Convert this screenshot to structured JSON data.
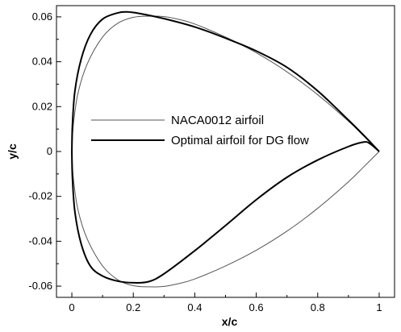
{
  "chart_data": {
    "type": "line",
    "title": "",
    "xlabel": "x/c",
    "ylabel": "y/c",
    "xlim": [
      -0.05,
      1.05
    ],
    "ylim": [
      -0.065,
      0.065
    ],
    "xticks": [
      0,
      0.2,
      0.4,
      0.6,
      0.8,
      1
    ],
    "xtick_labels": [
      "0",
      "0.2",
      "0.4",
      "0.6",
      "0.8",
      "1"
    ],
    "yticks": [
      -0.06,
      -0.04,
      -0.02,
      0,
      0.02,
      0.04,
      0.06
    ],
    "ytick_labels": [
      "-0.06",
      "-0.04",
      "-0.02",
      "0",
      "0.02",
      "0.04",
      "0.06"
    ],
    "grid": false,
    "legend_position": "center-left",
    "series": [
      {
        "name": "NACA0012 airfoil",
        "color": "#555555",
        "style": "thin",
        "upper": [
          [
            0,
            0
          ],
          [
            0.005,
            0.012
          ],
          [
            0.02,
            0.026
          ],
          [
            0.05,
            0.039
          ],
          [
            0.1,
            0.051
          ],
          [
            0.15,
            0.0572
          ],
          [
            0.2,
            0.0598
          ],
          [
            0.25,
            0.0603
          ],
          [
            0.3,
            0.0601
          ],
          [
            0.35,
            0.0588
          ],
          [
            0.4,
            0.0568
          ],
          [
            0.5,
            0.051
          ],
          [
            0.6,
            0.044
          ],
          [
            0.7,
            0.0355
          ],
          [
            0.8,
            0.0253
          ],
          [
            0.9,
            0.0135
          ],
          [
            0.95,
            0.0068
          ],
          [
            1,
            0
          ]
        ],
        "lower": [
          [
            0,
            0
          ],
          [
            0.005,
            -0.012
          ],
          [
            0.02,
            -0.026
          ],
          [
            0.05,
            -0.039
          ],
          [
            0.1,
            -0.051
          ],
          [
            0.15,
            -0.0572
          ],
          [
            0.2,
            -0.0598
          ],
          [
            0.25,
            -0.0603
          ],
          [
            0.3,
            -0.0601
          ],
          [
            0.35,
            -0.0588
          ],
          [
            0.4,
            -0.0568
          ],
          [
            0.5,
            -0.051
          ],
          [
            0.6,
            -0.044
          ],
          [
            0.7,
            -0.0355
          ],
          [
            0.8,
            -0.0253
          ],
          [
            0.9,
            -0.0135
          ],
          [
            0.95,
            -0.0068
          ],
          [
            1,
            0
          ]
        ]
      },
      {
        "name": "Optimal airfoil for DG flow",
        "color": "#000000",
        "style": "thick",
        "upper": [
          [
            0,
            0
          ],
          [
            0.002,
            0.012
          ],
          [
            0.01,
            0.027
          ],
          [
            0.03,
            0.041
          ],
          [
            0.06,
            0.052
          ],
          [
            0.1,
            0.059
          ],
          [
            0.15,
            0.0618
          ],
          [
            0.18,
            0.0622
          ],
          [
            0.22,
            0.0615
          ],
          [
            0.3,
            0.0592
          ],
          [
            0.4,
            0.0555
          ],
          [
            0.5,
            0.0505
          ],
          [
            0.6,
            0.0448
          ],
          [
            0.7,
            0.0375
          ],
          [
            0.8,
            0.027
          ],
          [
            0.9,
            0.014
          ],
          [
            0.95,
            0.0072
          ],
          [
            1,
            0
          ]
        ],
        "lower": [
          [
            0,
            0
          ],
          [
            0.002,
            -0.012
          ],
          [
            0.01,
            -0.027
          ],
          [
            0.03,
            -0.041
          ],
          [
            0.06,
            -0.051
          ],
          [
            0.1,
            -0.0555
          ],
          [
            0.15,
            -0.0578
          ],
          [
            0.2,
            -0.0585
          ],
          [
            0.25,
            -0.058
          ],
          [
            0.3,
            -0.0545
          ],
          [
            0.4,
            -0.0442
          ],
          [
            0.5,
            -0.033
          ],
          [
            0.6,
            -0.0215
          ],
          [
            0.7,
            -0.0115
          ],
          [
            0.8,
            -0.0038
          ],
          [
            0.9,
            0.0022
          ],
          [
            0.95,
            0.0042
          ],
          [
            0.97,
            0.0035
          ],
          [
            1,
            0
          ]
        ]
      }
    ]
  }
}
